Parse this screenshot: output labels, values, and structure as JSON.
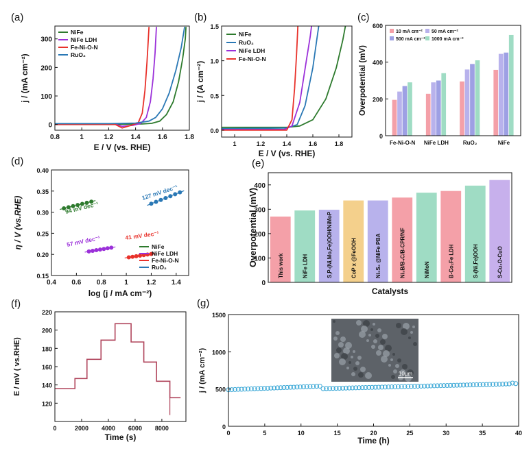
{
  "colors": {
    "nife": "#2d7a2d",
    "nife_ldh": "#9b30d9",
    "fenion": "#e8312a",
    "ruo2": "#2a78b5",
    "bar_a": "#f4a0a8",
    "bar_b": "#b8b2ec",
    "bar_c": "#f4d08c",
    "bar_d": "#9fdcc4",
    "bar_e": "#c7b0ec",
    "chrono": "#b0455c",
    "stability": "#39a7d6"
  },
  "chart_data": [
    {
      "panel": "(a)",
      "type": "line",
      "xlabel": "E / V (vs. RHE)",
      "ylabel": "j / (mA cm⁻²)",
      "xlim": [
        0.8,
        1.8
      ],
      "ylim": [
        -20,
        345
      ],
      "xticks": [
        0.8,
        1.0,
        1.2,
        1.4,
        1.6,
        1.8
      ],
      "yticks": [
        0,
        100,
        200,
        300
      ],
      "legend": [
        "NiFe",
        "NiFe LDH",
        "Fe-Ni-O-N",
        "RuO₂"
      ],
      "series": [
        {
          "name": "NiFe",
          "color": "nife",
          "points": [
            [
              0.8,
              2
            ],
            [
              1.2,
              1
            ],
            [
              1.45,
              2
            ],
            [
              1.52,
              4
            ],
            [
              1.58,
              12
            ],
            [
              1.63,
              35
            ],
            [
              1.68,
              80
            ],
            [
              1.72,
              150
            ],
            [
              1.75,
              230
            ],
            [
              1.77,
              300
            ],
            [
              1.775,
              342
            ]
          ]
        },
        {
          "name": "NiFe LDH",
          "color": "nife_ldh",
          "points": [
            [
              0.8,
              1
            ],
            [
              1.25,
              1
            ],
            [
              1.3,
              -6
            ],
            [
              1.38,
              -3
            ],
            [
              1.44,
              4
            ],
            [
              1.48,
              25
            ],
            [
              1.51,
              80
            ],
            [
              1.53,
              160
            ],
            [
              1.545,
              250
            ],
            [
              1.555,
              342
            ]
          ]
        },
        {
          "name": "Fe-Ni-O-N",
          "color": "fenion",
          "points": [
            [
              0.8,
              0
            ],
            [
              1.25,
              0
            ],
            [
              1.3,
              -12
            ],
            [
              1.36,
              -4
            ],
            [
              1.42,
              6
            ],
            [
              1.45,
              40
            ],
            [
              1.47,
              120
            ],
            [
              1.485,
              220
            ],
            [
              1.495,
              300
            ],
            [
              1.5,
              342
            ]
          ]
        },
        {
          "name": "RuO₂",
          "color": "ruo2",
          "points": [
            [
              0.8,
              3
            ],
            [
              1.2,
              3
            ],
            [
              1.4,
              5
            ],
            [
              1.5,
              12
            ],
            [
              1.55,
              25
            ],
            [
              1.6,
              55
            ],
            [
              1.65,
              110
            ],
            [
              1.7,
              190
            ],
            [
              1.74,
              270
            ],
            [
              1.765,
              342
            ]
          ]
        }
      ]
    },
    {
      "panel": "(b)",
      "type": "line",
      "xlabel": "E / V (vs. RHE)",
      "ylabel": "j / (A cm⁻²)",
      "xlim": [
        0.9,
        1.9
      ],
      "ylim": [
        -0.1,
        1.5
      ],
      "xticks": [
        1.0,
        1.2,
        1.4,
        1.6,
        1.8
      ],
      "yticks": [
        0.0,
        0.5,
        1.0,
        1.5
      ],
      "legend": [
        "NiFe",
        "RuO₂",
        "NiFe LDH",
        "Fe-Ni-O-N"
      ],
      "series": [
        {
          "name": "NiFe",
          "color": "nife",
          "points": [
            [
              0.9,
              0.04
            ],
            [
              1.4,
              0.04
            ],
            [
              1.5,
              0.06
            ],
            [
              1.6,
              0.15
            ],
            [
              1.7,
              0.45
            ],
            [
              1.78,
              0.9
            ],
            [
              1.83,
              1.3
            ],
            [
              1.85,
              1.5
            ]
          ]
        },
        {
          "name": "RuO₂",
          "color": "ruo2",
          "points": [
            [
              0.9,
              0.02
            ],
            [
              1.4,
              0.03
            ],
            [
              1.48,
              0.08
            ],
            [
              1.54,
              0.35
            ],
            [
              1.6,
              0.9
            ],
            [
              1.63,
              1.3
            ],
            [
              1.645,
              1.5
            ]
          ]
        },
        {
          "name": "NiFe LDH",
          "color": "nife_ldh",
          "points": [
            [
              0.9,
              0.01
            ],
            [
              1.38,
              0.01
            ],
            [
              1.44,
              0.06
            ],
            [
              1.5,
              0.4
            ],
            [
              1.55,
              1.0
            ],
            [
              1.58,
              1.35
            ],
            [
              1.59,
              1.5
            ]
          ]
        },
        {
          "name": "Fe-Ni-O-N",
          "color": "fenion",
          "points": [
            [
              0.9,
              0.0
            ],
            [
              1.4,
              0.0
            ],
            [
              1.44,
              0.15
            ],
            [
              1.46,
              0.6
            ],
            [
              1.475,
              1.1
            ],
            [
              1.485,
              1.5
            ]
          ]
        }
      ]
    },
    {
      "panel": "(c)",
      "type": "bar",
      "ylabel": "Overpotential (mV)",
      "ylim": [
        0,
        600
      ],
      "yticks": [
        0,
        200,
        400,
        600
      ],
      "categories": [
        "Fe-Ni-O-N",
        "NiFe LDH",
        "RuO₂",
        "NiFe"
      ],
      "legend": [
        "10 mA cm⁻²",
        "50  mA cm⁻²",
        "500  mA cm⁻²",
        "1000 mA cm⁻²"
      ],
      "series": [
        {
          "name": "10 mA cm⁻²",
          "color": "bar_a",
          "values": [
            195,
            228,
            295,
            358
          ]
        },
        {
          "name": "50 mA cm⁻²",
          "color": "bar_b",
          "values": [
            240,
            290,
            360,
            445
          ]
        },
        {
          "name": "500 mA cm⁻²",
          "color": "bar_b",
          "values": [
            270,
            300,
            390,
            452
          ]
        },
        {
          "name": "1000 mA cm⁻²",
          "color": "bar_d",
          "values": [
            290,
            340,
            410,
            548
          ]
        }
      ]
    },
    {
      "panel": "(d)",
      "type": "scatter",
      "xlabel": "log (j / mA cm⁻²)",
      "ylabel": "η / V (vs.RHE)",
      "xlim": [
        0.4,
        1.5
      ],
      "ylim": [
        0.15,
        0.4
      ],
      "xticks": [
        0.4,
        0.6,
        0.8,
        1.0,
        1.2,
        1.4
      ],
      "yticks": [
        0.15,
        0.2,
        0.25,
        0.3,
        0.35,
        0.4
      ],
      "legend": [
        "NiFe",
        "NiFe LDH",
        "Fe-Ni-O-N",
        "RuO₂"
      ],
      "annotations": [
        "94  mV dec⁻¹",
        "57 mV dec⁻¹",
        "41 mV dec⁻¹",
        "127 mV dec⁻¹"
      ],
      "series": [
        {
          "name": "NiFe",
          "color": "nife",
          "x_range": [
            0.5,
            0.72
          ],
          "y_range": [
            0.309,
            0.325
          ]
        },
        {
          "name": "NiFe LDH",
          "color": "nife_ldh",
          "x_range": [
            0.7,
            0.88
          ],
          "y_range": [
            0.207,
            0.216
          ]
        },
        {
          "name": "Fe-Ni-O-N",
          "color": "fenion",
          "x_range": [
            1.02,
            1.2
          ],
          "y_range": [
            0.193,
            0.201
          ]
        },
        {
          "name": "RuO₂",
          "color": "ruo2",
          "x_range": [
            1.2,
            1.43
          ],
          "y_range": [
            0.32,
            0.347
          ]
        }
      ]
    },
    {
      "panel": "(e)",
      "type": "bar",
      "xlabel": "Catalysts",
      "ylabel": "Overpotential (mV)",
      "ylim": [
        0,
        450
      ],
      "yticks": [
        0,
        100,
        200,
        300,
        400
      ],
      "categories": [
        "This work",
        "NiFe LDH",
        "S,P-(Ni,Mo,Fe)OOH/NiMoP",
        "CoP x @FeOOH",
        "Ni₃S₂ @NiFe PBA",
        "Ni₃B/B₄C/B-CPR/NF",
        "NiMoN",
        "B-Co₂Fe LDH",
        "S-(Ni,Fe)OOH",
        "S-Cu₂O-CuO"
      ],
      "values": [
        270,
        295,
        298,
        336,
        336,
        348,
        368,
        375,
        397,
        420
      ],
      "bar_colors": [
        "bar_a",
        "bar_d",
        "bar_b",
        "bar_c",
        "bar_b",
        "bar_a",
        "bar_d",
        "bar_a",
        "bar_d",
        "bar_e"
      ]
    },
    {
      "panel": "(f)",
      "type": "line",
      "xlabel": "Time (s)",
      "ylabel": "E / mV ( vs.RHE)",
      "xlim": [
        0,
        9800
      ],
      "ylim": [
        100,
        220
      ],
      "xticks": [
        0,
        2000,
        4000,
        6000,
        8000
      ],
      "yticks": [
        120,
        140,
        160,
        180,
        200,
        220
      ],
      "steps": [
        [
          0,
          136
        ],
        [
          1500,
          147
        ],
        [
          2400,
          168
        ],
        [
          3450,
          189
        ],
        [
          4500,
          207
        ],
        [
          5700,
          187
        ],
        [
          6650,
          165
        ],
        [
          7600,
          144
        ],
        [
          8600,
          126
        ],
        [
          9400,
          126
        ]
      ]
    },
    {
      "panel": "(g)",
      "type": "scatter",
      "xlabel": "Time (h)",
      "ylabel": "j / (mA cm⁻²)",
      "xlim": [
        0,
        40
      ],
      "ylim": [
        0,
        1500
      ],
      "xticks": [
        0,
        5,
        10,
        15,
        20,
        25,
        30,
        35,
        40
      ],
      "yticks": [
        0,
        500,
        1000,
        1500
      ],
      "inset_label": "10μm",
      "trend": [
        [
          0,
          490
        ],
        [
          12.9,
          540
        ],
        [
          13,
          505
        ],
        [
          39,
          570
        ],
        [
          39.3,
          590
        ],
        [
          40,
          550
        ]
      ]
    }
  ],
  "panels": {
    "a": "(a)",
    "b": "(b)",
    "c": "(c)",
    "d": "(d)",
    "e": "(e)",
    "f": "(f)",
    "g": "(g)"
  }
}
